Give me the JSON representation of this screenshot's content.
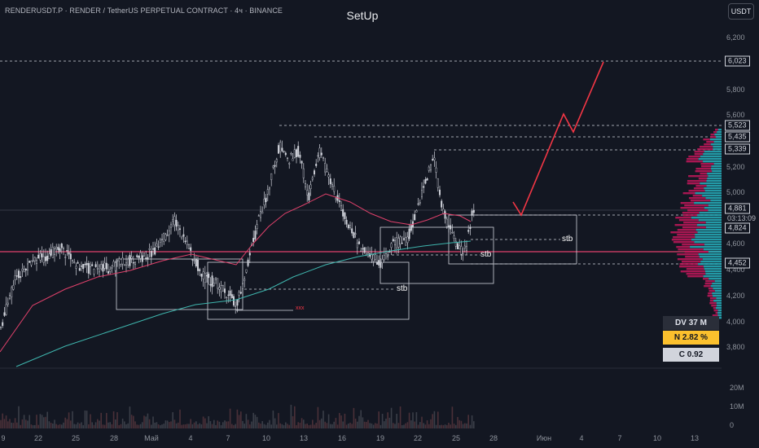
{
  "header": {
    "symbol_line": "RENDERUSDT.P · RENDER / TetherUS PERPETUAL CONTRACT · 4ч · BINANCE",
    "title": "SetUp",
    "currency_button": "USDT"
  },
  "price_axis": {
    "labels": [
      "6,200",
      "5,800",
      "5,600",
      "5,200",
      "5,000",
      "4,600",
      "4,400",
      "4,200",
      "4,000",
      "3,800"
    ],
    "tagged_levels": [
      "6,023",
      "5,523",
      "5,435",
      "5,339",
      "4,881",
      "4,824",
      "4,452"
    ],
    "countdown": "03:13:09"
  },
  "volume_axis": {
    "labels": [
      "20M",
      "10M",
      "0"
    ]
  },
  "time_axis": {
    "labels": [
      "9",
      "22",
      "25",
      "28",
      "Май",
      "4",
      "7",
      "10",
      "13",
      "16",
      "19",
      "22",
      "25",
      "28",
      "Июн",
      "4",
      "7",
      "10",
      "13"
    ]
  },
  "annotations": {
    "stb_labels": [
      "stb",
      "stb",
      "stb"
    ],
    "xxx_label": "xxx"
  },
  "stats": {
    "dv": "DV 37 M",
    "n": "N 2.82 %",
    "c": "C  0.92"
  },
  "colors": {
    "background": "#131722",
    "candles": "#d1d4dc",
    "ma_pink": "#e0416b",
    "ma_teal": "#3fb6ae",
    "horizontal_level": "#e0416b",
    "forecast_arrow": "#f23645",
    "profile_pink": "#c2185b",
    "profile_teal": "#26a7b5",
    "stat_yellow": "#fbc02d"
  }
}
